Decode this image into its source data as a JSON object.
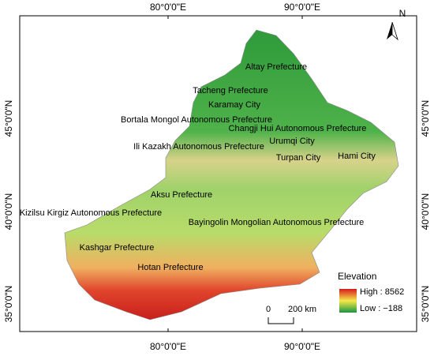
{
  "map": {
    "grid_labels": {
      "top": [
        "80°0'0\"E",
        "90°0'0\"E"
      ],
      "bottom": [
        "80°0'0\"E",
        "90°0'0\"E"
      ],
      "left": [
        "45°0'0\"N",
        "40°0'0\"N",
        "35°0'0\"N"
      ],
      "right": [
        "45°0'0\"N",
        "40°0'0\"N",
        "35°0'0\"N"
      ]
    },
    "north": "N",
    "places": [
      "Altay Prefecture",
      "Tacheng Prefecture",
      "Karamay City",
      "Bortala Mongol Autonomous Prefecture",
      "Changji Hui Autonomous Prefecture",
      "Urumqi City",
      "Ili Kazakh Autonomous Prefecture",
      "Turpan City",
      "Hami City",
      "Aksu Prefecture",
      "Kizilsu Kirgiz Autonomous Prefecture",
      "Bayingolin Mongolian Autonomous Prefecture",
      "Kashgar Prefecture",
      "Hotan Prefecture"
    ],
    "legend": {
      "title": "Elevation",
      "high": "High : 8562",
      "low": "Low : −188"
    },
    "scale": {
      "start": "0",
      "end": "200 km"
    }
  }
}
